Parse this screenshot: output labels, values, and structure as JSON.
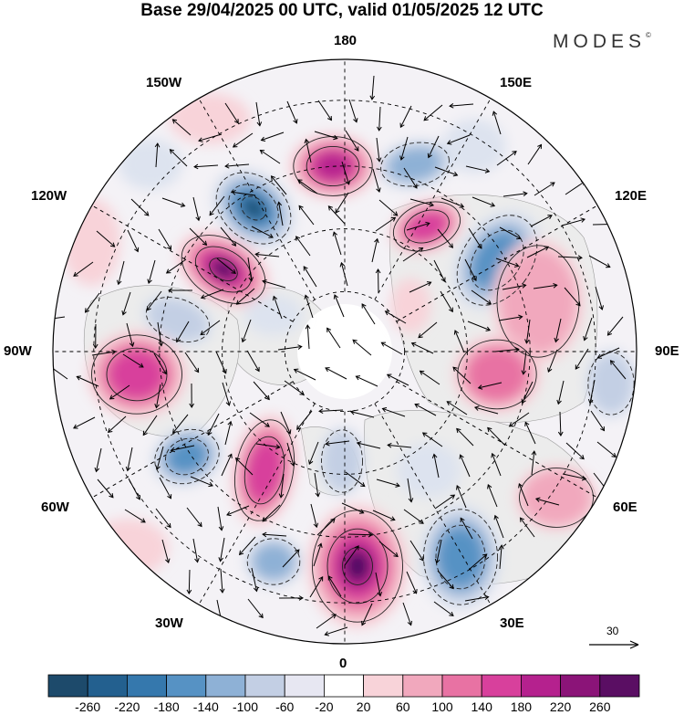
{
  "title": "Base 29/04/2025 00 UTC, valid 01/05/2025 12 UTC",
  "logo": "MODES",
  "logo_mark": "©",
  "map": {
    "projection": "north-polar-stereographic",
    "longitude_labels": {
      "top": "180",
      "bottom": "0",
      "left": "90W",
      "right": "90E",
      "upper_left": "150W",
      "upper_right": "150E",
      "mid_upper_left": "120W",
      "mid_upper_right": "120E",
      "lower_left": "60W",
      "lower_right": "60E",
      "bottom_left": "30W",
      "bottom_right": "30E"
    },
    "vector_reference_label": "30",
    "colors": {
      "positive_dark": "#4d1063",
      "negative_dark": "#1b4f73",
      "land_gray": "#ececec"
    }
  },
  "colorbar": {
    "labels": [
      "-260",
      "-220",
      "-180",
      "-140",
      "-100",
      "-60",
      "-20",
      "20",
      "60",
      "100",
      "140",
      "180",
      "220",
      "260"
    ],
    "colors": [
      "#1d4a6b",
      "#23608f",
      "#3578ad",
      "#5692c4",
      "#8eb1d6",
      "#c3cfe4",
      "#e7e7f2",
      "#ffffff",
      "#f8d3d9",
      "#f1a8bd",
      "#e872a3",
      "#d8409c",
      "#b5218e",
      "#8b1478",
      "#5a0e63"
    ]
  }
}
